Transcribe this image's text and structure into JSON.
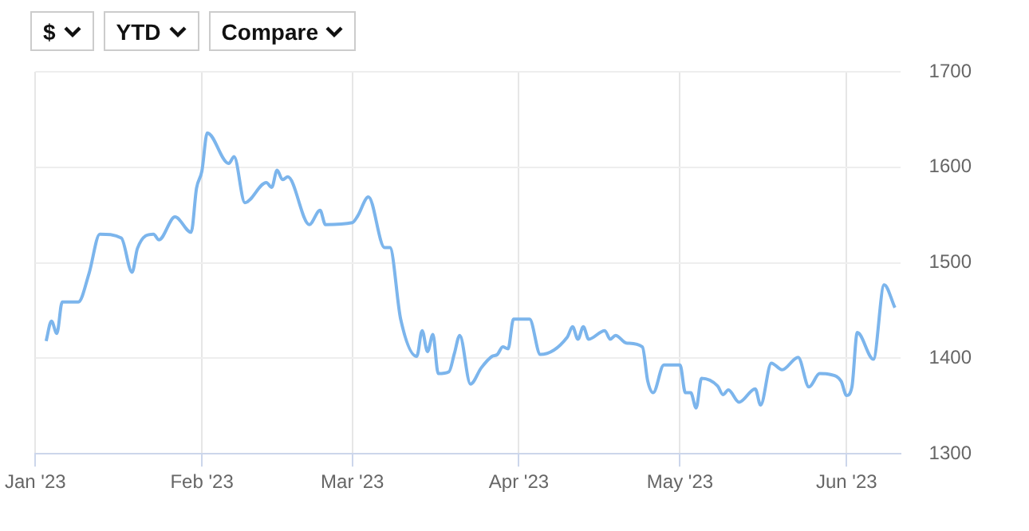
{
  "chart_data": {
    "type": "line",
    "annotations": [
      "$",
      "YTD",
      "Compare"
    ],
    "x": [
      "2023-01-03",
      "2023-01-04",
      "2023-01-05",
      "2023-01-06",
      "2023-01-09",
      "2023-01-11",
      "2023-01-13",
      "2023-01-17",
      "2023-01-19",
      "2023-01-20",
      "2023-01-23",
      "2023-01-24",
      "2023-01-27",
      "2023-01-30",
      "2023-01-31",
      "2023-02-01",
      "2023-02-02",
      "2023-02-06",
      "2023-02-07",
      "2023-02-09",
      "2023-02-13",
      "2023-02-14",
      "2023-02-15",
      "2023-02-16",
      "2023-02-17",
      "2023-02-21",
      "2023-02-23",
      "2023-02-24",
      "2023-03-01",
      "2023-03-02",
      "2023-03-04",
      "2023-03-07",
      "2023-03-08",
      "2023-03-10",
      "2023-03-13",
      "2023-03-14",
      "2023-03-15",
      "2023-03-16",
      "2023-03-17",
      "2023-03-19",
      "2023-03-20",
      "2023-03-21",
      "2023-03-23",
      "2023-03-25",
      "2023-03-27",
      "2023-03-28",
      "2023-03-29",
      "2023-03-30",
      "2023-03-31",
      "2023-04-03",
      "2023-04-05",
      "2023-04-10",
      "2023-04-11",
      "2023-04-12",
      "2023-04-13",
      "2023-04-14",
      "2023-04-17",
      "2023-04-18",
      "2023-04-19",
      "2023-04-21",
      "2023-04-24",
      "2023-04-25",
      "2023-04-26",
      "2023-04-28",
      "2023-05-01",
      "2023-05-02",
      "2023-05-03",
      "2023-05-04",
      "2023-05-05",
      "2023-05-08",
      "2023-05-09",
      "2023-05-10",
      "2023-05-12",
      "2023-05-15",
      "2023-05-16",
      "2023-05-18",
      "2023-05-20",
      "2023-05-23",
      "2023-05-25",
      "2023-05-27",
      "2023-05-29",
      "2023-05-31",
      "2023-06-01",
      "2023-06-02",
      "2023-06-03",
      "2023-06-06",
      "2023-06-08",
      "2023-06-10"
    ],
    "series": [
      {
        "color": "#7cb5ec",
        "values": [
          1418,
          1439,
          1426,
          1459,
          1459,
          1489,
          1530,
          1526,
          1490,
          1515,
          1530,
          1524,
          1548,
          1532,
          1578,
          1596,
          1636,
          1604,
          1611,
          1563,
          1584,
          1579,
          1597,
          1587,
          1590,
          1540,
          1555,
          1540,
          1542,
          1549,
          1569,
          1516,
          1516,
          1441,
          1402,
          1429,
          1407,
          1425,
          1384,
          1386,
          1405,
          1424,
          1373,
          1390,
          1402,
          1404,
          1412,
          1410,
          1441,
          1441,
          1404,
          1422,
          1433,
          1420,
          1433,
          1420,
          1429,
          1420,
          1424,
          1416,
          1412,
          1376,
          1364,
          1393,
          1393,
          1364,
          1364,
          1348,
          1379,
          1371,
          1362,
          1367,
          1354,
          1368,
          1351,
          1395,
          1388,
          1401,
          1370,
          1384,
          1383,
          1376,
          1361,
          1370,
          1427,
          1399,
          1477,
          1453
        ]
      }
    ],
    "xlim": [
      "2023-01-01",
      "2023-06-11"
    ],
    "xticks": [
      {
        "value": "2023-01-01",
        "label": "Jan '23"
      },
      {
        "value": "2023-02-01",
        "label": "Feb '23"
      },
      {
        "value": "2023-03-01",
        "label": "Mar '23"
      },
      {
        "value": "2023-04-01",
        "label": "Apr '23"
      },
      {
        "value": "2023-05-01",
        "label": "May '23"
      },
      {
        "value": "2023-06-01",
        "label": "Jun '23"
      }
    ],
    "ylim": [
      1300,
      1700
    ],
    "yticks": [
      1300,
      1400,
      1500,
      1600,
      1700
    ],
    "grid": true,
    "legend": false,
    "marker": "none",
    "line_style": "solid"
  }
}
